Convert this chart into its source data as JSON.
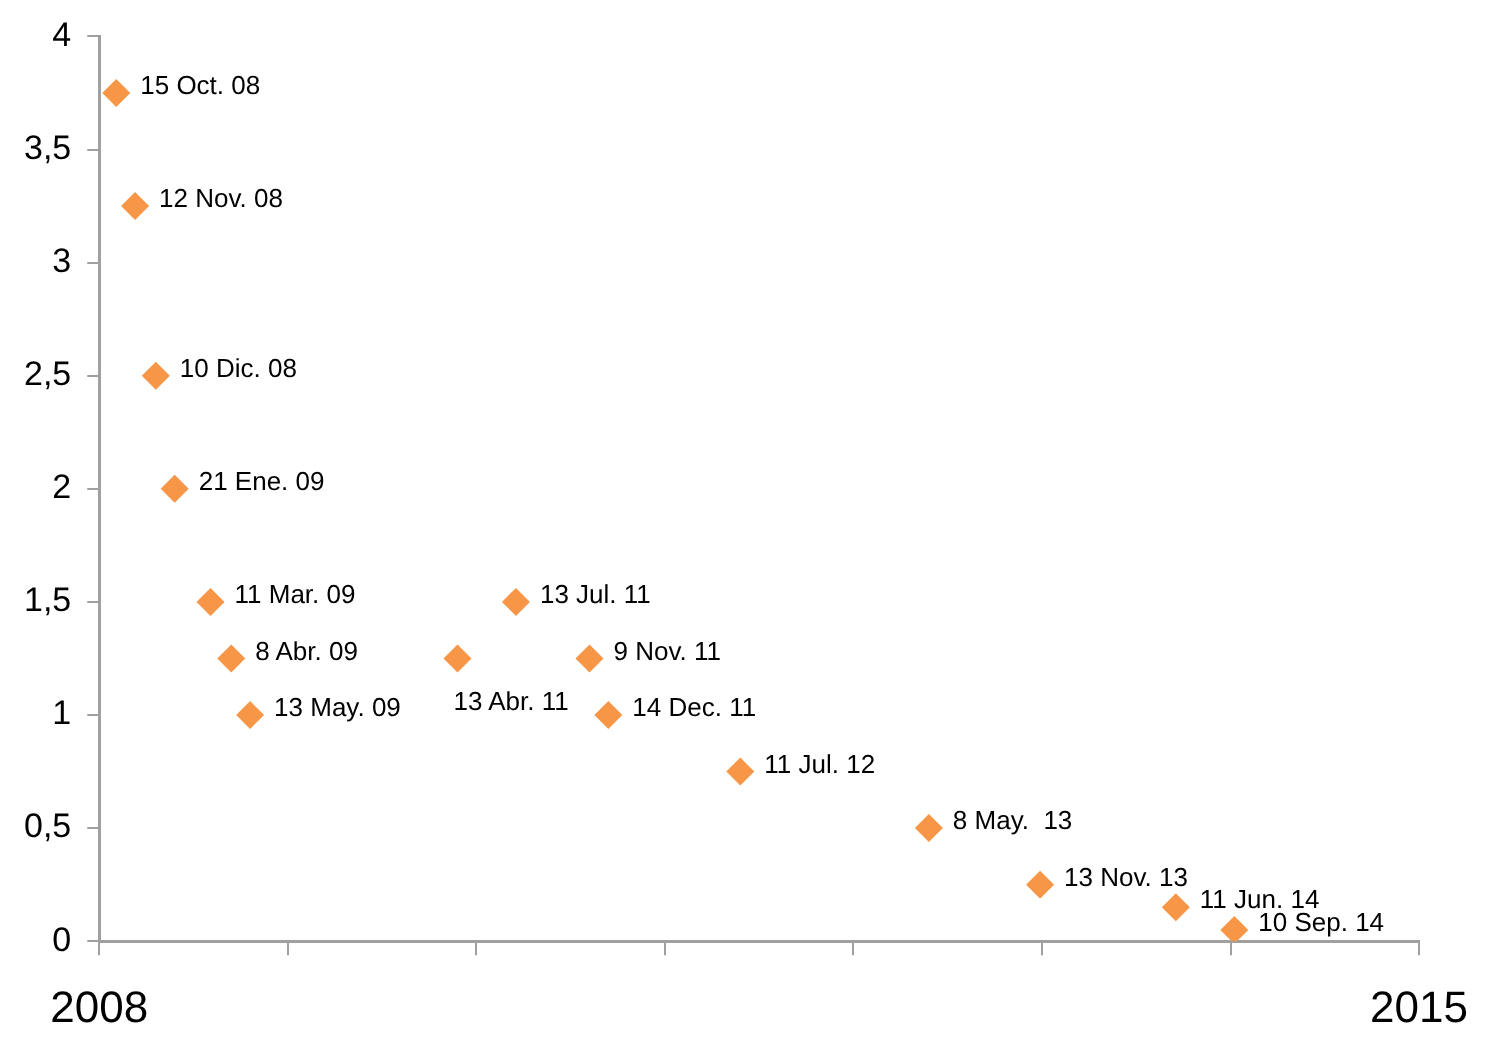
{
  "chart_data": {
    "type": "scatter",
    "marker": "diamond",
    "grid": false,
    "legend": false,
    "xlim": [
      2008,
      2015
    ],
    "xticks": [
      2008,
      {
        "value": 2009,
        "label": null
      },
      {
        "value": 2010,
        "label": null
      },
      {
        "value": 2011,
        "label": null
      },
      {
        "value": 2012,
        "label": null
      },
      {
        "value": 2013,
        "label": null
      },
      {
        "value": 2014,
        "label": null
      },
      2015
    ],
    "ylim": [
      0,
      4
    ],
    "yticks": [
      0,
      {
        "value": 0.5,
        "label": "0,5"
      },
      1,
      {
        "value": 1.5,
        "label": "1,5"
      },
      2,
      {
        "value": 2.5,
        "label": "2,5"
      },
      3,
      {
        "value": 3.5,
        "label": "3,5"
      },
      4
    ],
    "series": [
      {
        "color": "#f79646",
        "x": [
          2008.09,
          2008.19,
          2008.3,
          2008.4,
          2008.59,
          2008.7,
          2008.8,
          2009.9,
          2010.21,
          2010.6,
          2010.7,
          2011.4,
          2012.4,
          2012.99,
          2013.71,
          2014.02
        ],
        "values": [
          3.75,
          3.25,
          2.5,
          2.0,
          1.5,
          1.25,
          1.0,
          1.25,
          1.5,
          1.25,
          1.0,
          0.75,
          0.5,
          0.25,
          0.15,
          0.05
        ]
      }
    ],
    "annotations": [
      {
        "text": "15 Oct. 08",
        "x": 2008.09,
        "y": 3.75
      },
      {
        "text": "12 Nov. 08",
        "x": 2008.19,
        "y": 3.25
      },
      {
        "text": "10 Dic. 08",
        "x": 2008.3,
        "y": 2.5
      },
      {
        "text": "21 Ene. 09",
        "x": 2008.4,
        "y": 2.0
      },
      {
        "text": "11 Mar. 09",
        "x": 2008.59,
        "y": 1.5
      },
      {
        "text": "8 Abr. 09",
        "x": 2008.7,
        "y": 1.25
      },
      {
        "text": "13 May. 09",
        "x": 2008.8,
        "y": 1.0
      },
      {
        "text": "13 Abr. 11",
        "x": 2009.9,
        "y": 1.25
      },
      {
        "text": "13 Jul. 11",
        "x": 2010.21,
        "y": 1.5
      },
      {
        "text": "9 Nov. 11",
        "x": 2010.6,
        "y": 1.25
      },
      {
        "text": "14 Dec. 11",
        "x": 2010.7,
        "y": 1.0
      },
      {
        "text": "11 Jul. 12",
        "x": 2011.4,
        "y": 0.75
      },
      {
        "text": "8 May.  13",
        "x": 2012.4,
        "y": 0.5
      },
      {
        "text": "13 Nov. 13",
        "x": 2012.99,
        "y": 0.25
      },
      {
        "text": "11 Jun. 14",
        "x": 2013.71,
        "y": 0.15
      },
      {
        "text": "10 Sep. 14",
        "x": 2014.02,
        "y": 0.05
      }
    ]
  }
}
